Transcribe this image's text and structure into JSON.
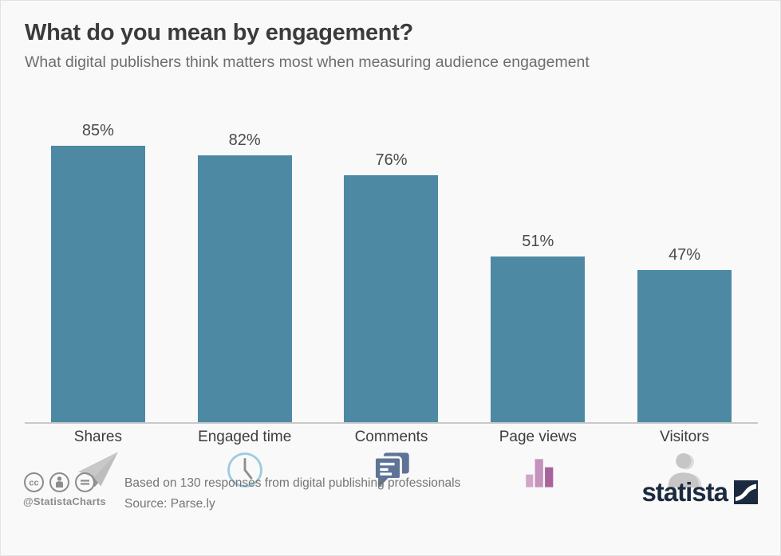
{
  "page": {
    "title": "What do you mean by engagement?",
    "subtitle": "What digital publishers think matters most when measuring audience engagement"
  },
  "chart_data": {
    "type": "bar",
    "title": "What do you mean by engagement?",
    "subtitle": "What digital publishers think matters most when measuring audience engagement",
    "categories": [
      "Shares",
      "Engaged time",
      "Comments",
      "Page views",
      "Visitors"
    ],
    "values": [
      85,
      82,
      76,
      51,
      47
    ],
    "value_labels": [
      "85%",
      "82%",
      "76%",
      "51%",
      "47%"
    ],
    "unit": "%",
    "ylim": [
      0,
      100
    ],
    "grid": false,
    "legend": "none",
    "bar_color": "#4e89a4",
    "category_icons": [
      "paper-plane",
      "clock",
      "speech-bubbles",
      "mini-bar-chart",
      "person"
    ]
  },
  "footer": {
    "license_badges": [
      "cc",
      "attribution-person",
      "equals"
    ],
    "handle": "@StatistaCharts",
    "note": "Based on 130 responses from digital publishing professionals",
    "source": "Source: Parse.ly",
    "brand": "statista"
  },
  "colors": {
    "background": "#f9f9f9",
    "bar": "#4e89a4",
    "axis_line": "#c9c9c9",
    "title_text": "#3b3b3b",
    "subtitle_text": "#6e6e6e",
    "footer_text": "#757575",
    "license_gray": "#8c8c8c",
    "brand_navy": "#1b2a3e",
    "clock_icon_blue": "#9ecbdd",
    "comments_icon_blue": "#5e7396",
    "pageviews_icon_pinks": [
      "#cfa6c8",
      "#c492bc",
      "#a7639b"
    ],
    "gray_icon": "#c6c6c6"
  }
}
